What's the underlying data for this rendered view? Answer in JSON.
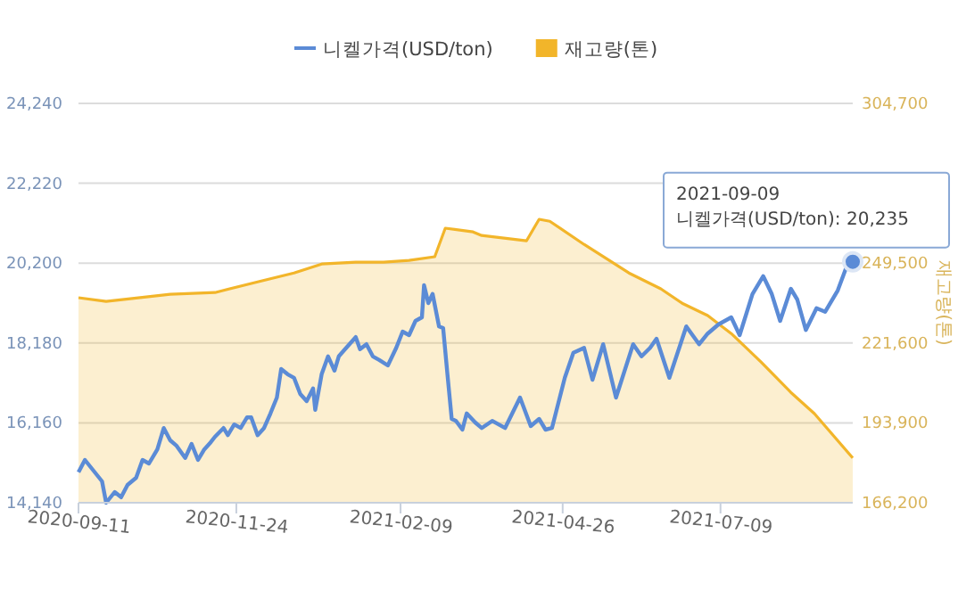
{
  "chart_data": {
    "type": "line",
    "xlim": [
      "2020-09-11",
      "2021-09-09"
    ],
    "xticks": [
      "2020-09-11",
      "2020-11-24",
      "2021-02-09",
      "2021-04-26",
      "2021-07-09"
    ],
    "ylim": [
      14140,
      24240
    ],
    "yticks": [
      {
        "value": 14140,
        "label": "14,140"
      },
      {
        "value": 16160,
        "label": "16,160"
      },
      {
        "value": 18180,
        "label": "18,180"
      },
      {
        "value": 20200,
        "label": "20,200"
      },
      {
        "value": 22220,
        "label": "22,220"
      },
      {
        "value": 24240,
        "label": "24,240"
      }
    ],
    "y2lim": [
      166200,
      304700
    ],
    "y2ticks": [
      {
        "value": 166200,
        "label": "166,200"
      },
      {
        "value": 193900,
        "label": "193,900"
      },
      {
        "value": 221600,
        "label": "221,600"
      },
      {
        "value": 249500,
        "label": "249,500"
      },
      {
        "value": 304700,
        "label": "304,700"
      }
    ],
    "y2label": "재고량(톤)",
    "grid": "y",
    "legend": "top",
    "marker": "none",
    "line_style": "solid",
    "annotations": [
      {
        "text": "2021-09-09\n니켈가격(USD/ton): 20,235",
        "x": "2021-09-09",
        "y": 20235
      }
    ],
    "series": [
      {
        "name": "니켈가격(USD/ton)",
        "color": "#5b8bd6",
        "x": [
          "2020-09-11",
          "2020-09-14",
          "2020-09-18",
          "2020-09-22",
          "2020-09-24",
          "2020-09-28",
          "2020-10-01",
          "2020-10-04",
          "2020-10-08",
          "2020-10-11",
          "2020-10-14",
          "2020-10-18",
          "2020-10-21",
          "2020-10-24",
          "2020-10-27",
          "2020-10-31",
          "2020-11-03",
          "2020-11-06",
          "2020-11-09",
          "2020-11-12",
          "2020-11-14",
          "2020-11-18",
          "2020-11-20",
          "2020-11-23",
          "2020-11-26",
          "2020-11-29",
          "2020-12-01",
          "2020-12-04",
          "2020-12-07",
          "2020-12-10",
          "2020-12-13",
          "2020-12-15",
          "2020-12-18",
          "2020-12-21",
          "2020-12-24",
          "2020-12-27",
          "2020-12-30",
          "2020-12-31",
          "2021-01-03",
          "2021-01-06",
          "2021-01-09",
          "2021-01-11",
          "2021-01-14",
          "2021-01-19",
          "2021-01-21",
          "2021-01-24",
          "2021-01-27",
          "2021-01-30",
          "2021-02-03",
          "2021-02-07",
          "2021-02-10",
          "2021-02-13",
          "2021-02-16",
          "2021-02-19",
          "2021-02-20",
          "2021-02-22",
          "2021-02-24",
          "2021-02-27",
          "2021-03-01",
          "2021-03-03",
          "2021-03-05",
          "2021-03-07",
          "2021-03-10",
          "2021-03-12",
          "2021-03-16",
          "2021-03-19",
          "2021-03-24",
          "2021-03-30",
          "2021-04-06",
          "2021-04-11",
          "2021-04-15",
          "2021-04-18",
          "2021-04-21",
          "2021-04-27",
          "2021-05-01",
          "2021-05-06",
          "2021-05-10",
          "2021-05-15",
          "2021-05-21",
          "2021-05-29",
          "2021-06-02",
          "2021-06-06",
          "2021-06-09",
          "2021-06-15",
          "2021-06-23",
          "2021-06-29",
          "2021-07-03",
          "2021-07-08",
          "2021-07-14",
          "2021-07-18",
          "2021-07-24",
          "2021-07-29",
          "2021-08-02",
          "2021-08-06",
          "2021-08-11",
          "2021-08-14",
          "2021-08-18",
          "2021-08-23",
          "2021-08-27",
          "2021-09-02",
          "2021-09-06",
          "2021-09-09"
        ],
        "values": [
          14910,
          15220,
          14950,
          14680,
          14140,
          14410,
          14280,
          14590,
          14770,
          15220,
          15130,
          15490,
          16030,
          15720,
          15580,
          15270,
          15630,
          15220,
          15490,
          15670,
          15810,
          16030,
          15850,
          16120,
          16030,
          16300,
          16300,
          15850,
          16030,
          16400,
          16800,
          17520,
          17390,
          17300,
          16890,
          16710,
          17030,
          16490,
          17390,
          17840,
          17480,
          17840,
          18020,
          18330,
          18020,
          18150,
          17840,
          17750,
          17610,
          18060,
          18470,
          18380,
          18740,
          18830,
          19640,
          19190,
          19420,
          18600,
          18560,
          17390,
          16260,
          16210,
          15990,
          16400,
          16170,
          16030,
          16210,
          16030,
          16800,
          16080,
          16260,
          15990,
          16030,
          17300,
          17930,
          18060,
          17250,
          18150,
          16800,
          18150,
          17840,
          18060,
          18290,
          17300,
          18600,
          18150,
          18420,
          18650,
          18830,
          18380,
          19420,
          19870,
          19420,
          18740,
          19550,
          19280,
          18510,
          19060,
          18970,
          19510,
          20090,
          20235
        ]
      },
      {
        "name": "재고량(톤)",
        "type": "area",
        "axis": "y2",
        "color": "#f2b52a",
        "x": [
          "2020-09-11",
          "2020-09-24",
          "2020-10-24",
          "2020-11-14",
          "2020-12-04",
          "2020-12-21",
          "2021-01-03",
          "2021-01-19",
          "2021-02-01",
          "2021-02-13",
          "2021-02-25",
          "2021-03-02",
          "2021-03-15",
          "2021-03-19",
          "2021-04-09",
          "2021-04-15",
          "2021-04-20",
          "2021-05-06",
          "2021-05-27",
          "2021-06-11",
          "2021-06-21",
          "2021-07-03",
          "2021-07-14",
          "2021-07-28",
          "2021-08-11",
          "2021-08-22",
          "2021-09-09"
        ],
        "values": [
          237300,
          236000,
          238500,
          239100,
          242800,
          245900,
          249000,
          249600,
          249600,
          250200,
          251500,
          261400,
          260100,
          258900,
          257000,
          264500,
          263800,
          255800,
          245900,
          240400,
          235400,
          231100,
          224900,
          215000,
          204500,
          197100,
          181700
        ]
      }
    ]
  }
}
